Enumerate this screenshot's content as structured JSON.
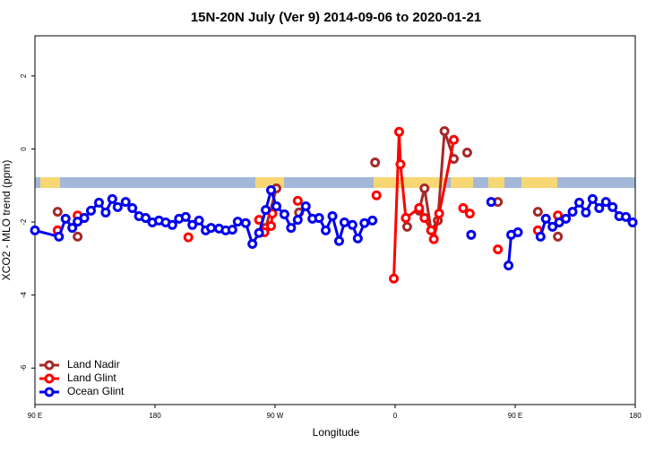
{
  "chart_data": {
    "type": "line",
    "title": "15N-20N July (Ver 9)   2014-09-06 to 2020-01-21",
    "x_label": "Longitude",
    "y_label": "XCO2 - MLO trend (ppm)",
    "xlim": [
      90,
      540
    ],
    "ylim": [
      -7,
      3.1
    ],
    "xticks": [
      {
        "value": 90,
        "label": "90 E"
      },
      {
        "value": 180,
        "label": "180"
      },
      {
        "value": 270,
        "label": "90 W"
      },
      {
        "value": 360,
        "label": "0"
      },
      {
        "value": 450,
        "label": "90 E"
      },
      {
        "value": 540,
        "label": "180"
      }
    ],
    "yticks": [
      -6,
      -4,
      -2,
      0,
      2
    ],
    "legend": "bottom-left",
    "series": [
      {
        "name": "Land Nadir",
        "color": "#a52a2a",
        "x": [
          107,
          null,
          122,
          null,
          263,
          271,
          null,
          288,
          null,
          345,
          null,
          369,
          null,
          378,
          382,
          387,
          392,
          397,
          404,
          null,
          414,
          null,
          437,
          null,
          467,
          null,
          482
        ],
        "values": [
          -1.72,
          null,
          -2.4,
          null,
          -2.16,
          -1.08,
          null,
          -1.74,
          null,
          -0.37,
          null,
          -2.13,
          null,
          -1.69,
          -1.08,
          -2.23,
          -1.96,
          0.49,
          -0.27,
          null,
          -0.1,
          null,
          -1.45,
          null,
          -1.72,
          null,
          -2.4
        ]
      },
      {
        "name": "Land Glint",
        "color": "#ff0000",
        "x": [
          107,
          null,
          122,
          null,
          205,
          null,
          258,
          262,
          267,
          268,
          null,
          287,
          null,
          346,
          null,
          359,
          363,
          364,
          368,
          378,
          382,
          387,
          389,
          393,
          404,
          null,
          411,
          null,
          416,
          null,
          437,
          null,
          467,
          null,
          482
        ],
        "values": [
          -2.23,
          null,
          -1.82,
          null,
          -2.42,
          null,
          -1.94,
          -2.28,
          -2.11,
          -1.77,
          null,
          -1.42,
          null,
          -1.27,
          null,
          -3.55,
          0.47,
          -0.42,
          -1.89,
          -1.62,
          -1.89,
          -2.23,
          -2.47,
          -1.77,
          0.25,
          null,
          -1.62,
          null,
          -1.77,
          null,
          -2.75,
          null,
          -2.23,
          null,
          -1.82
        ]
      },
      {
        "name": "Ocean Glint",
        "color": "#0000ee",
        "x": [
          90,
          108,
          113,
          118,
          122,
          127,
          132,
          138,
          143,
          148,
          152,
          158,
          163,
          168,
          173,
          178,
          183,
          188,
          193,
          198,
          203,
          208,
          213,
          218,
          222,
          228,
          233,
          238,
          242,
          248,
          253,
          258,
          263,
          267,
          271,
          277,
          282,
          287,
          293,
          298,
          303,
          308,
          313,
          318,
          322,
          328,
          332,
          337,
          343,
          null,
          417,
          null,
          432,
          null,
          445,
          447,
          452,
          null,
          469,
          473,
          478,
          483,
          488,
          493,
          498,
          503,
          508,
          513,
          518,
          523,
          528,
          533,
          538
        ],
        "values": [
          -2.23,
          -2.4,
          -1.91,
          -2.16,
          -1.99,
          -1.89,
          -1.69,
          -1.47,
          -1.74,
          -1.37,
          -1.59,
          -1.45,
          -1.62,
          -1.84,
          -1.89,
          -2.01,
          -1.96,
          -2.01,
          -2.08,
          -1.91,
          -1.86,
          -2.08,
          -1.96,
          -2.23,
          -2.16,
          -2.18,
          -2.23,
          -2.21,
          -1.99,
          -2.03,
          -2.6,
          -2.3,
          -1.67,
          -1.13,
          -1.57,
          -1.79,
          -2.16,
          -1.94,
          -1.57,
          -1.91,
          -1.89,
          -2.23,
          -1.84,
          -2.52,
          -2.01,
          -2.08,
          -2.45,
          -2.03,
          -1.96,
          null,
          -2.35,
          null,
          -1.45,
          null,
          -3.19,
          -2.35,
          -2.28,
          null,
          -2.4,
          -1.91,
          -2.13,
          -2.01,
          -1.91,
          -1.72,
          -1.47,
          -1.74,
          -1.37,
          -1.62,
          -1.45,
          -1.59,
          -1.84,
          -1.86,
          -2.01
        ]
      }
    ]
  }
}
